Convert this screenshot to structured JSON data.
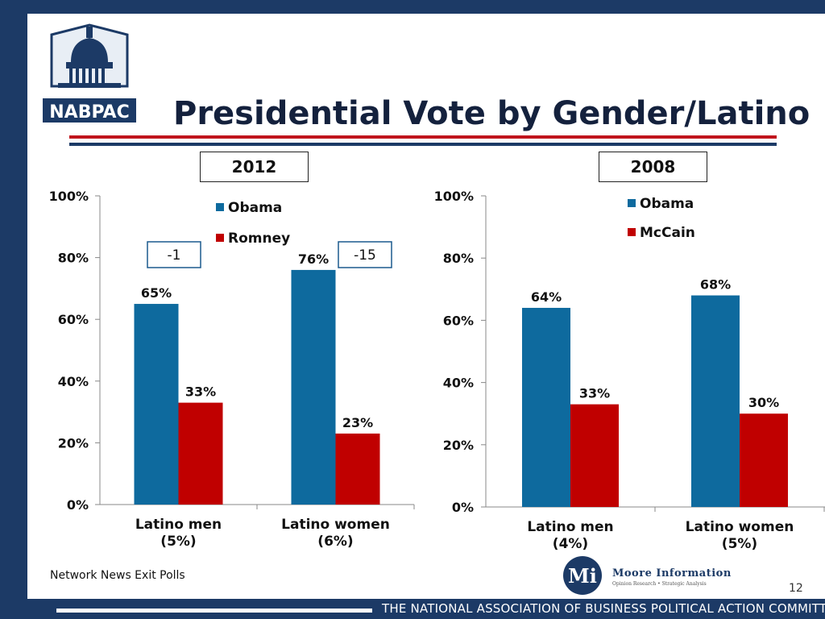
{
  "title": "Presidential Vote by Gender/Latino",
  "logo": {
    "text": "NABPAC",
    "icon": "capitol-dome-icon"
  },
  "source": "Network News Exit Polls",
  "page_number": "12",
  "footer": "THE NATIONAL ASSOCIATION OF BUSINESS POLITICAL ACTION COMMITTEES",
  "moore": {
    "initial": "Mi",
    "name": "Moore Information",
    "tagline": "Opinion Research • Strategic Analysis"
  },
  "colors": {
    "obama": "#0e6a9e",
    "opponent": "#c00000",
    "navy": "#1c3a66"
  },
  "chart_data": [
    {
      "type": "bar",
      "title": "2012",
      "categories": [
        "Latino men\n(5%)",
        "Latino women\n(6%)"
      ],
      "category_lines": [
        [
          "Latino men",
          "(5%)"
        ],
        [
          "Latino women",
          "(6%)"
        ]
      ],
      "series": [
        {
          "name": "Obama",
          "values": [
            65,
            76
          ],
          "labels": [
            "65%",
            "76%"
          ]
        },
        {
          "name": "Romney",
          "values": [
            33,
            23
          ],
          "labels": [
            "33%",
            "23%"
          ]
        }
      ],
      "annotations": [
        "-1",
        "-15"
      ],
      "yticks": [
        "0%",
        "20%",
        "40%",
        "60%",
        "80%",
        "100%"
      ],
      "ylim": [
        0,
        100
      ],
      "legend": "top"
    },
    {
      "type": "bar",
      "title": "2008",
      "categories": [
        "Latino men\n(4%)",
        "Latino women\n(5%)"
      ],
      "category_lines": [
        [
          "Latino men",
          "(4%)"
        ],
        [
          "Latino women",
          "(5%)"
        ]
      ],
      "series": [
        {
          "name": "Obama",
          "values": [
            64,
            68
          ],
          "labels": [
            "64%",
            "68%"
          ]
        },
        {
          "name": "McCain",
          "values": [
            33,
            30
          ],
          "labels": [
            "33%",
            "30%"
          ]
        }
      ],
      "yticks": [
        "0%",
        "20%",
        "40%",
        "60%",
        "80%",
        "100%"
      ],
      "ylim": [
        0,
        100
      ],
      "legend": "top"
    }
  ]
}
